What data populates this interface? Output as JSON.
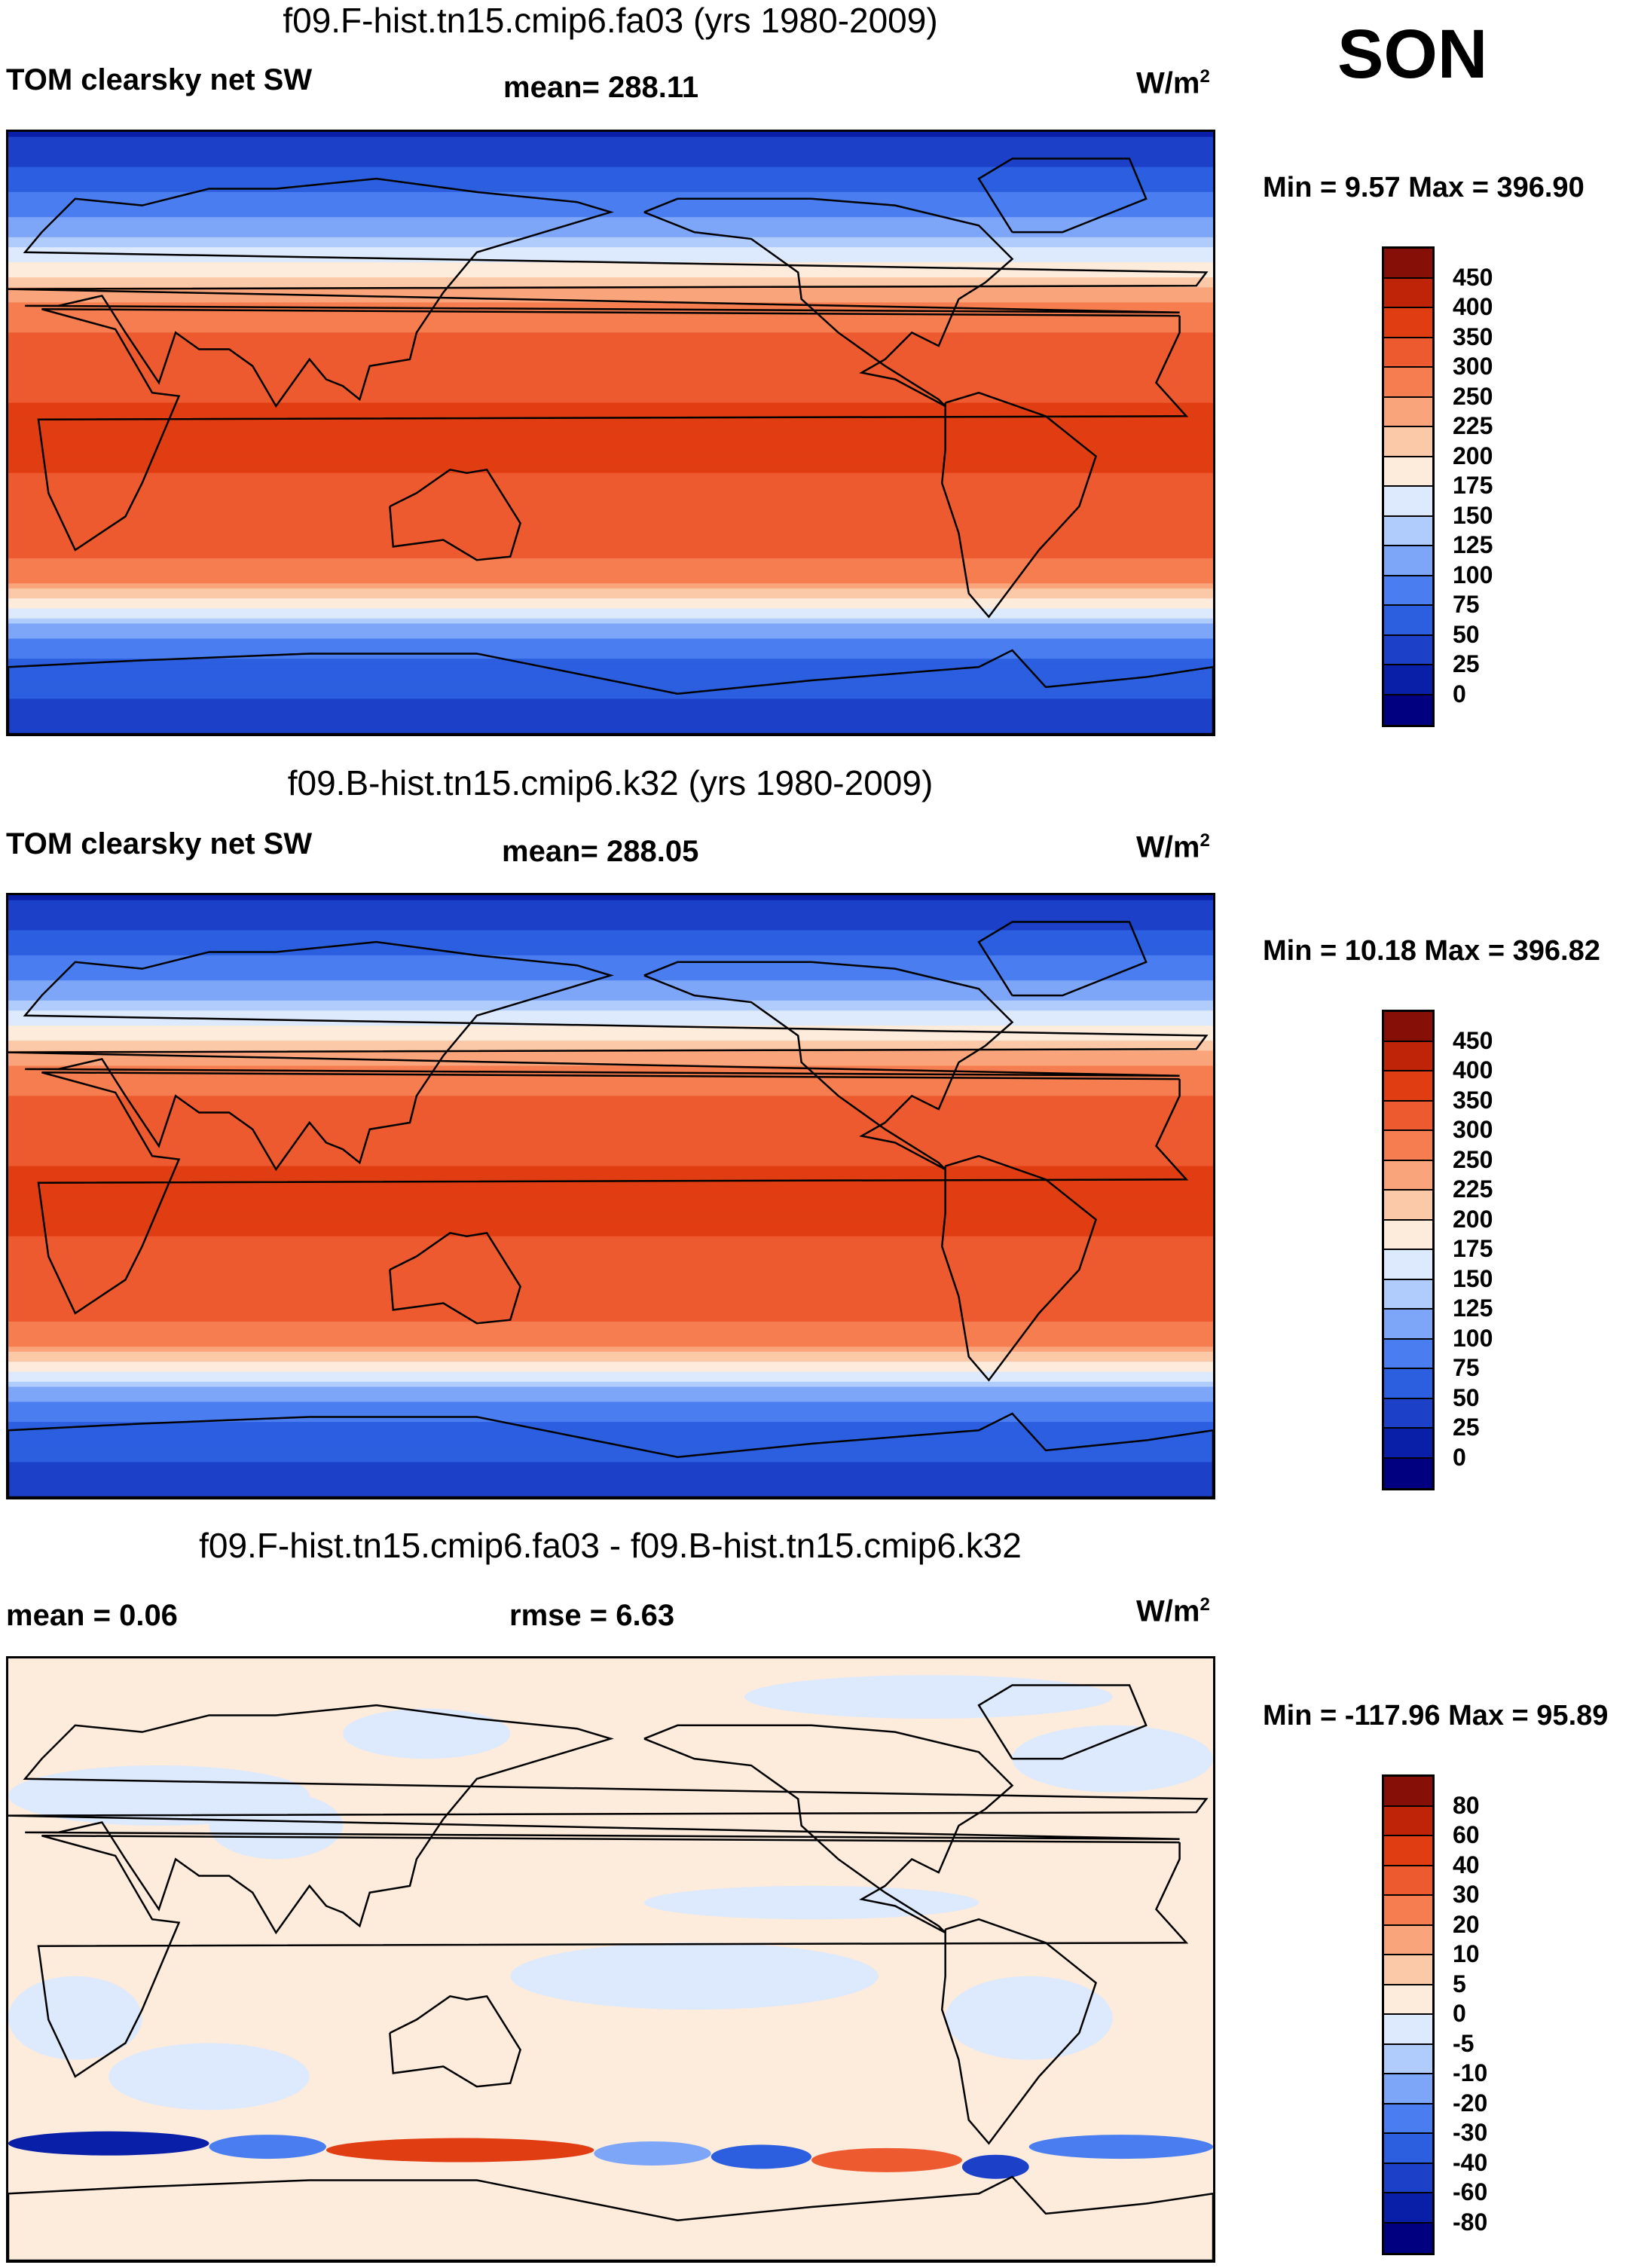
{
  "season": "SON",
  "units_main": "W/m",
  "units_sup": "2",
  "colors": {
    "abs_scale": [
      "#000080",
      "#0a1fa8",
      "#1d40c8",
      "#2b5fe0",
      "#4a7ef0",
      "#7ea6f8",
      "#b0ccfc",
      "#dde9fd",
      "#fdebdc",
      "#fcc9a8",
      "#f9a47a",
      "#f57d4f",
      "#ee5a2f",
      "#e13d12",
      "#bf2408",
      "#861008"
    ],
    "diff_scale": [
      "#000080",
      "#0a1fa8",
      "#1d40c8",
      "#2b5fe0",
      "#4a7ef0",
      "#7ea6f8",
      "#b0ccfc",
      "#dde9fd",
      "#fdebdc",
      "#fcc9a8",
      "#f9a47a",
      "#f57d4f",
      "#ee5a2f",
      "#e13d12",
      "#bf2408",
      "#861008"
    ]
  },
  "panels": [
    {
      "title": "f09.F-hist.tn15.cmip6.fa03 (yrs 1980-2009)",
      "variable": "TOM clearsky net SW",
      "mean_text": "mean= 288.11",
      "minmax": "Min =   9.57 Max = 396.90",
      "ticks": [
        "450",
        "400",
        "350",
        "300",
        "250",
        "225",
        "200",
        "175",
        "150",
        "125",
        "100",
        "75",
        "50",
        "25",
        "0"
      ]
    },
    {
      "title": "f09.B-hist.tn15.cmip6.k32 (yrs 1980-2009)",
      "variable": "TOM clearsky net SW",
      "mean_text": "mean= 288.05",
      "minmax": "Min =  10.18 Max = 396.82",
      "ticks": [
        "450",
        "400",
        "350",
        "300",
        "250",
        "225",
        "200",
        "175",
        "150",
        "125",
        "100",
        "75",
        "50",
        "25",
        "0"
      ]
    },
    {
      "title": "f09.F-hist.tn15.cmip6.fa03 - f09.B-hist.tn15.cmip6.k32",
      "mean_text": "mean =   0.06",
      "rmse_text": "rmse =    6.63",
      "minmax": "Min = -117.96 Max =  95.89",
      "ticks": [
        "80",
        "60",
        "40",
        "30",
        "20",
        "10",
        "5",
        "0",
        "-5",
        "-10",
        "-20",
        "-30",
        "-40",
        "-60",
        "-80"
      ]
    }
  ],
  "chart_data": [
    {
      "type": "heatmap",
      "title": "f09.F-hist.tn15.cmip6.fa03 (yrs 1980-2009)",
      "variable": "TOM clearsky net SW",
      "units": "W/m2",
      "mean": 288.11,
      "min": 9.57,
      "max": 396.9,
      "levels": [
        0,
        25,
        50,
        75,
        100,
        125,
        150,
        175,
        200,
        225,
        250,
        300,
        350,
        400,
        450
      ],
      "lat_profile": [
        [
          90,
          20
        ],
        [
          75,
          60
        ],
        [
          60,
          120
        ],
        [
          50,
          180
        ],
        [
          42,
          230
        ],
        [
          35,
          275
        ],
        [
          25,
          330
        ],
        [
          0,
          360
        ],
        [
          -25,
          340
        ],
        [
          -40,
          290
        ],
        [
          -50,
          200
        ],
        [
          -58,
          120
        ],
        [
          -70,
          60
        ],
        [
          -90,
          40
        ]
      ]
    },
    {
      "type": "heatmap",
      "title": "f09.B-hist.tn15.cmip6.k32 (yrs 1980-2009)",
      "variable": "TOM clearsky net SW",
      "units": "W/m2",
      "mean": 288.05,
      "min": 10.18,
      "max": 396.82,
      "levels": [
        0,
        25,
        50,
        75,
        100,
        125,
        150,
        175,
        200,
        225,
        250,
        300,
        350,
        400,
        450
      ],
      "lat_profile": [
        [
          90,
          20
        ],
        [
          75,
          60
        ],
        [
          60,
          120
        ],
        [
          50,
          180
        ],
        [
          42,
          230
        ],
        [
          35,
          275
        ],
        [
          25,
          330
        ],
        [
          0,
          360
        ],
        [
          -25,
          340
        ],
        [
          -40,
          290
        ],
        [
          -50,
          200
        ],
        [
          -58,
          120
        ],
        [
          -70,
          60
        ],
        [
          -90,
          40
        ]
      ]
    },
    {
      "type": "heatmap",
      "title": "f09.F-hist.tn15.cmip6.fa03 - f09.B-hist.tn15.cmip6.k32",
      "units": "W/m2",
      "mean": 0.06,
      "rmse": 6.63,
      "min": -117.96,
      "max": 95.89,
      "levels": [
        -80,
        -60,
        -40,
        -30,
        -20,
        -10,
        -5,
        0,
        5,
        10,
        20,
        30,
        40,
        60,
        80
      ]
    }
  ]
}
